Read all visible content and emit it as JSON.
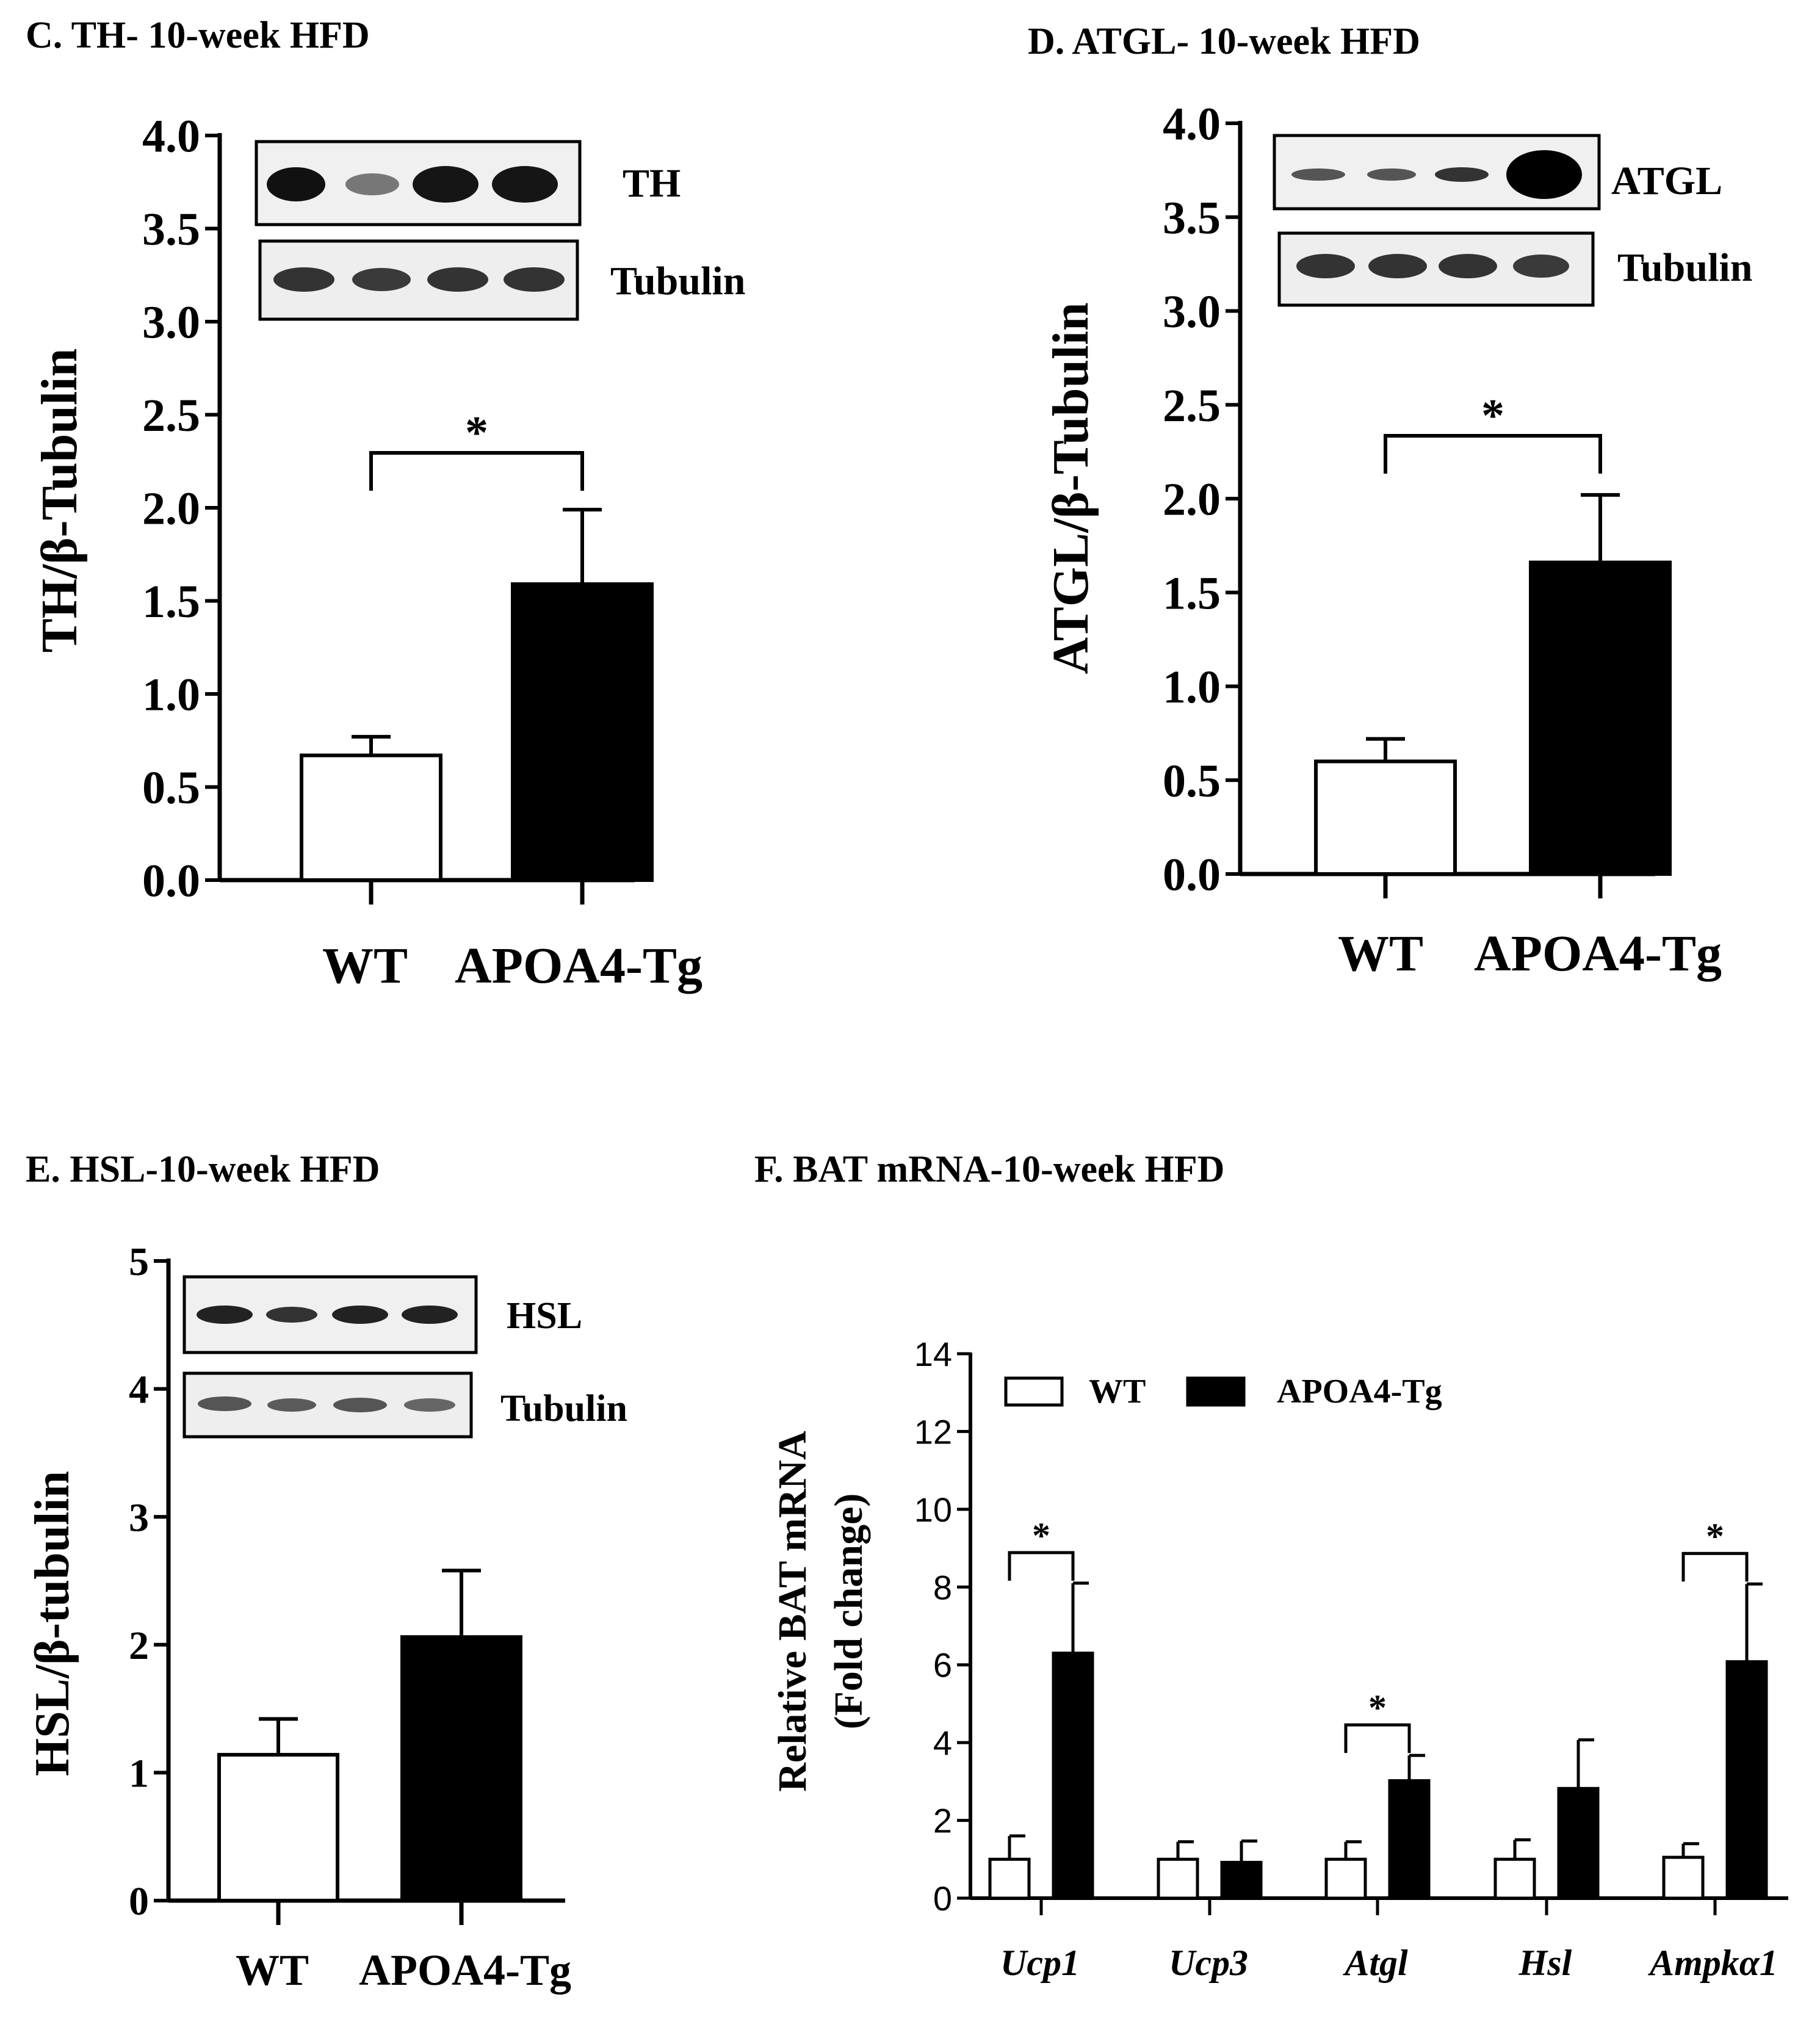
{
  "colors": {
    "wt_fill": "#ffffff",
    "tg_fill": "#000000",
    "stroke": "#000000"
  },
  "chart_data": [
    {
      "type": "bar",
      "panel": "C",
      "title": "C. TH- 10-week HFD",
      "ylabel": "TH/β-Tubulin",
      "categories": [
        "WT",
        "APOA4-Tg"
      ],
      "values": [
        0.67,
        1.59
      ],
      "errors": [
        0.1,
        0.4
      ],
      "ylim": [
        0,
        4
      ],
      "yticks": [
        "0.0",
        "0.5",
        "1.0",
        "1.5",
        "2.0",
        "2.5",
        "3.0",
        "3.5",
        "4.0"
      ],
      "significance": "*",
      "blot_labels": [
        "TH",
        "Tubulin"
      ]
    },
    {
      "type": "bar",
      "panel": "D",
      "title": "D. ATGL- 10-week HFD",
      "ylabel": "ATGL/β-Tubulin",
      "categories": [
        "WT",
        "APOA4-Tg"
      ],
      "values": [
        0.6,
        1.66
      ],
      "errors": [
        0.12,
        0.36
      ],
      "ylim": [
        0,
        4
      ],
      "yticks": [
        "0.0",
        "0.5",
        "1.0",
        "1.5",
        "2.0",
        "2.5",
        "3.0",
        "3.5",
        "4.0"
      ],
      "significance": "*",
      "blot_labels": [
        "ATGL",
        "Tubulin"
      ]
    },
    {
      "type": "bar",
      "panel": "E",
      "title": "E. HSL-10-week HFD",
      "ylabel": "HSL/β-tubulin",
      "categories": [
        "WT",
        "APOA4-Tg"
      ],
      "values": [
        1.14,
        2.06
      ],
      "errors": [
        0.28,
        0.52
      ],
      "ylim": [
        0,
        5
      ],
      "yticks": [
        "0",
        "1",
        "2",
        "3",
        "4",
        "5"
      ],
      "significance": "",
      "blot_labels": [
        "HSL",
        "Tubulin"
      ]
    },
    {
      "type": "bar",
      "panel": "F",
      "title": "F. BAT mRNA-10-week HFD",
      "ylabel": [
        "Relative BAT mRNA",
        "(Fold change)"
      ],
      "categories": [
        "Ucp1",
        "Ucp3",
        "Atgl",
        "Hsl",
        "Ampkα1"
      ],
      "series": [
        {
          "name": "WT",
          "values": [
            1.0,
            1.0,
            1.0,
            1.0,
            1.05
          ],
          "errors": [
            0.6,
            0.45,
            0.45,
            0.5,
            0.35
          ]
        },
        {
          "name": "APOA4-Tg",
          "values": [
            6.3,
            0.92,
            3.02,
            2.82,
            6.08
          ],
          "errors": [
            1.8,
            0.55,
            0.65,
            1.25,
            2.0
          ]
        }
      ],
      "ylim": [
        0,
        14
      ],
      "yticks": [
        "0",
        "2",
        "4",
        "6",
        "8",
        "10",
        "12",
        "14"
      ],
      "significance": [
        "*",
        "",
        "*",
        "",
        "*"
      ],
      "legend": "top-left"
    }
  ]
}
